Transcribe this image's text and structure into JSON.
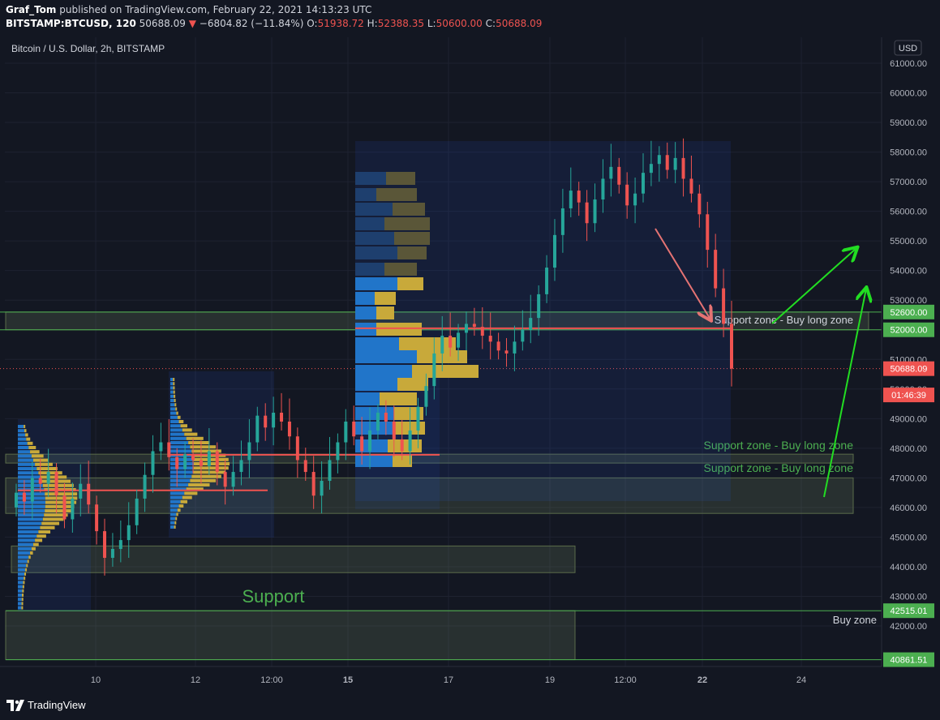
{
  "header": {
    "author": "Graf_Tom",
    "published_text": "published on TradingView.com, February 22, 2021 14:13:23 UTC",
    "symbol": "BITSTAMP:BTCUSD, 120",
    "last": "50688.09",
    "arrow": "▼",
    "change": "−6804.82 (−11.84%)",
    "o_label": "O:",
    "o_val": "51938.72",
    "h_label": "H:",
    "h_val": "52388.35",
    "l_label": "L:",
    "l_val": "50600.00",
    "c_label": "C:",
    "c_val": "50688.09"
  },
  "chart_data": {
    "type": "candlestick",
    "title": "Bitcoin / U.S. Dollar, 2h, BITSTAMP",
    "currency": "USD",
    "price_ticks": [
      "61000.00",
      "60000.00",
      "59000.00",
      "58000.00",
      "57000.00",
      "56000.00",
      "55000.00",
      "54000.00",
      "53000.00",
      "52000.00",
      "51000.00",
      "50000.00",
      "49000.00",
      "48000.00",
      "47000.00",
      "46000.00",
      "45000.00",
      "44000.00",
      "43000.00",
      "42000.00"
    ],
    "price_range": [
      40600,
      62000
    ],
    "time_labels": [
      "10",
      "12",
      "12:00",
      "15",
      "17",
      "19",
      "12:00",
      "22",
      "24"
    ],
    "price_badges": [
      {
        "label": "52600.00",
        "value": 52600,
        "color": "#4caf50"
      },
      {
        "label": "52000.00",
        "value": 52000,
        "color": "#4caf50"
      },
      {
        "label": "50688.09",
        "value": 50688.09,
        "color": "#ef5350"
      },
      {
        "label": "01:46:39",
        "value": 49800,
        "color": "#ef5350"
      },
      {
        "label": "42515.01",
        "value": 42515.01,
        "color": "#4caf50"
      },
      {
        "label": "40861.51",
        "value": 40861.51,
        "color": "#4caf50"
      }
    ],
    "zones": [
      {
        "label": "Support zone - Buy long zone",
        "from": 52000,
        "to": 52600
      },
      {
        "label": "Support zone - Buy long zone",
        "from": 47500,
        "to": 47800
      },
      {
        "label": "Support zone - Buy long zone",
        "from": 45800,
        "to": 47000
      },
      {
        "label": "",
        "from": 43800,
        "to": 44700
      },
      {
        "label": "Support",
        "from": 40861.51,
        "to": 42515.01
      },
      {
        "label": "Buy zone",
        "from": 40861.51,
        "to": 42515.01
      }
    ],
    "candles_close_path": [
      46500,
      46200,
      47000,
      46800,
      47200,
      46400,
      45600,
      46300,
      46800,
      46100,
      45200,
      44300,
      44600,
      44900,
      45400,
      46300,
      47100,
      47900,
      48200,
      47700,
      47300,
      47800,
      47600,
      47400,
      47900,
      47200,
      46700,
      47200,
      47600,
      48200,
      49100,
      48700,
      49200,
      48900,
      48400,
      47600,
      47200,
      46400,
      46900,
      47600,
      48200,
      48900,
      48400,
      47900,
      48600,
      49200,
      48900,
      48300,
      47900,
      48600,
      49400,
      50100,
      51200,
      51800,
      51400,
      51900,
      52200,
      52100,
      51800,
      51600,
      51300,
      51200,
      51600,
      52000,
      52400,
      53200,
      54100,
      55200,
      56100,
      56700,
      56300,
      55600,
      56400,
      57100,
      57500,
      56900,
      56200,
      56600,
      57300,
      57600,
      57900,
      57400,
      57800,
      57100,
      56600,
      55900,
      54700,
      53400,
      52200,
      50688.09
    ]
  },
  "footer": {
    "brand": "TradingView"
  }
}
